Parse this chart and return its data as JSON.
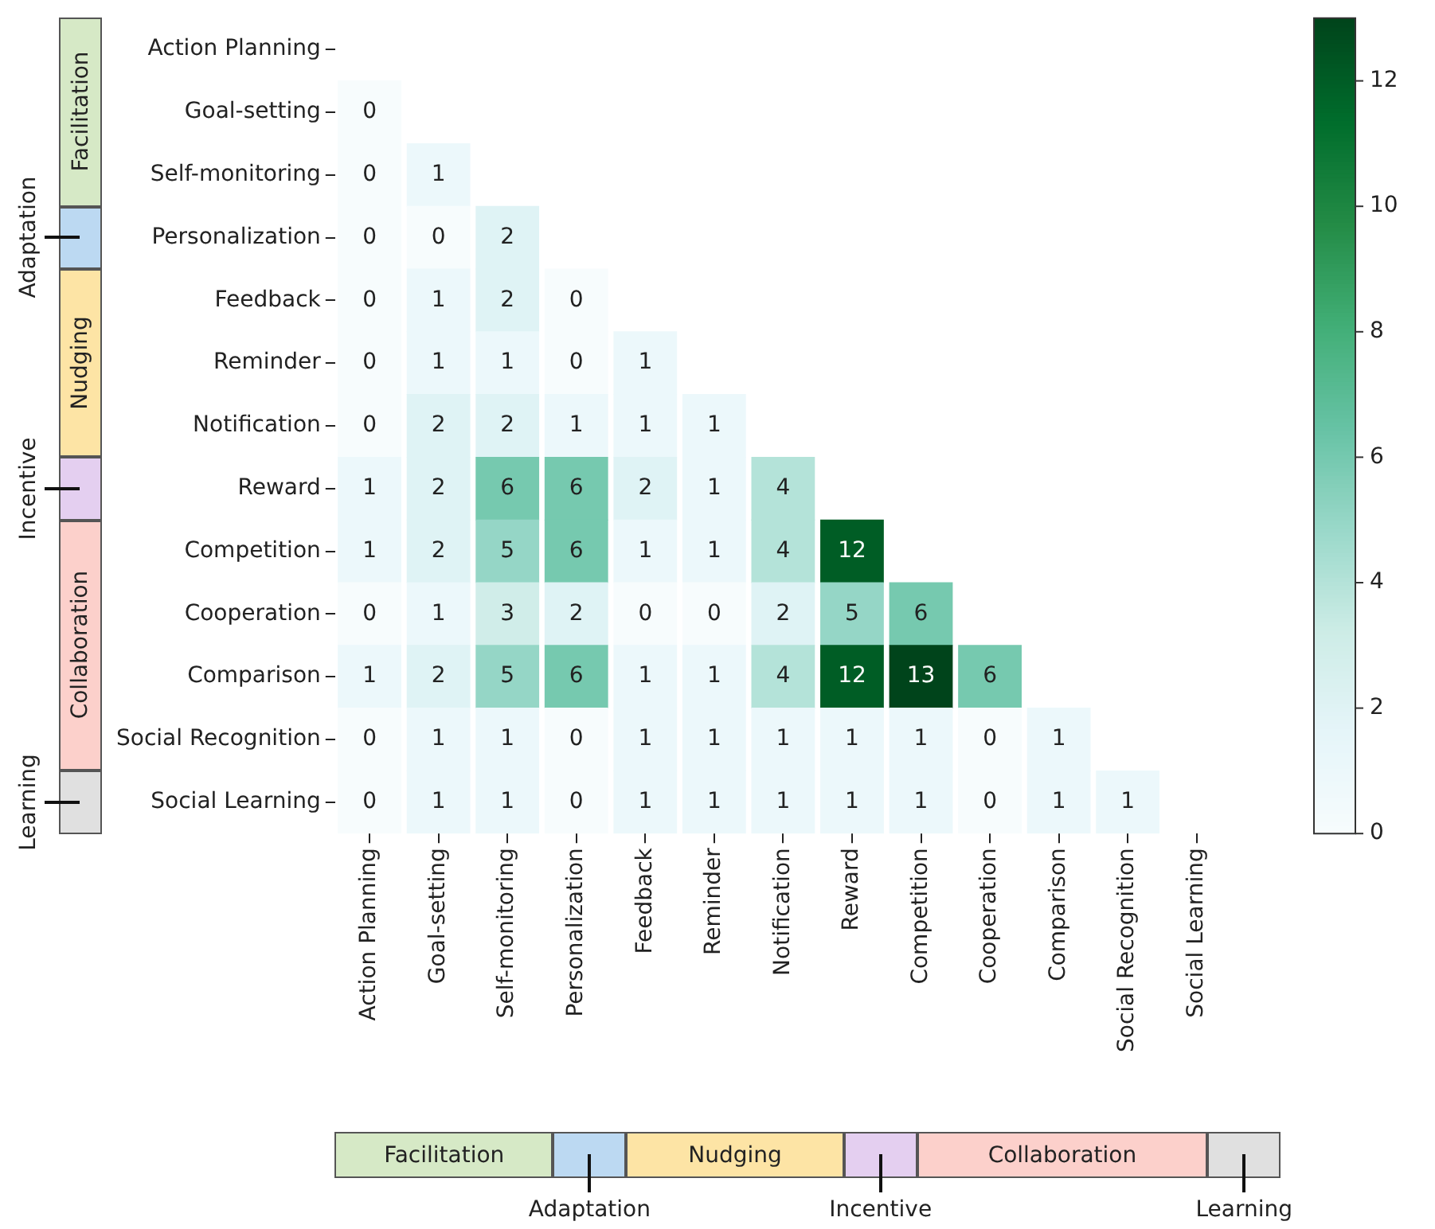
{
  "chart_data": {
    "type": "heatmap",
    "categories": [
      "Action Planning",
      "Goal-setting",
      "Self-monitoring",
      "Personalization",
      "Feedback",
      "Reminder",
      "Notification",
      "Reward",
      "Competition",
      "Cooperation",
      "Comparison",
      "Social Recognition",
      "Social Learning"
    ],
    "y_categories": [
      "Action Planning",
      "Goal-setting",
      "Self-monitoring",
      "Personalization",
      "Feedback",
      "Reminder",
      "Notification",
      "Reward",
      "Competition",
      "Cooperation",
      "Comparison",
      "Social Recognition",
      "Social Learning"
    ],
    "cells": [
      [
        null,
        null,
        null,
        null,
        null,
        null,
        null,
        null,
        null,
        null,
        null,
        null,
        null
      ],
      [
        0,
        null,
        null,
        null,
        null,
        null,
        null,
        null,
        null,
        null,
        null,
        null,
        null
      ],
      [
        0,
        1,
        null,
        null,
        null,
        null,
        null,
        null,
        null,
        null,
        null,
        null,
        null
      ],
      [
        0,
        0,
        2,
        null,
        null,
        null,
        null,
        null,
        null,
        null,
        null,
        null,
        null
      ],
      [
        0,
        1,
        2,
        0,
        null,
        null,
        null,
        null,
        null,
        null,
        null,
        null,
        null
      ],
      [
        0,
        1,
        1,
        0,
        1,
        null,
        null,
        null,
        null,
        null,
        null,
        null,
        null
      ],
      [
        0,
        2,
        2,
        1,
        1,
        1,
        null,
        null,
        null,
        null,
        null,
        null,
        null
      ],
      [
        1,
        2,
        6,
        6,
        2,
        1,
        4,
        null,
        null,
        null,
        null,
        null,
        null
      ],
      [
        1,
        2,
        5,
        6,
        1,
        1,
        4,
        12,
        null,
        null,
        null,
        null,
        null
      ],
      [
        0,
        1,
        3,
        2,
        0,
        0,
        2,
        5,
        6,
        null,
        null,
        null,
        null
      ],
      [
        1,
        2,
        5,
        6,
        1,
        1,
        4,
        12,
        13,
        6,
        null,
        null,
        null
      ],
      [
        0,
        1,
        1,
        0,
        1,
        1,
        1,
        1,
        1,
        0,
        1,
        null,
        null
      ],
      [
        0,
        1,
        1,
        0,
        1,
        1,
        1,
        1,
        1,
        0,
        1,
        1,
        null
      ]
    ],
    "clim": [
      0,
      13
    ],
    "cticks": [
      0,
      2,
      4,
      6,
      8,
      10,
      12
    ],
    "data_labels": true,
    "annotations": [
      "Facilitation",
      "Adaptation",
      "Nudging",
      "Incentive",
      "Collaboration",
      "Learning"
    ]
  }
}
